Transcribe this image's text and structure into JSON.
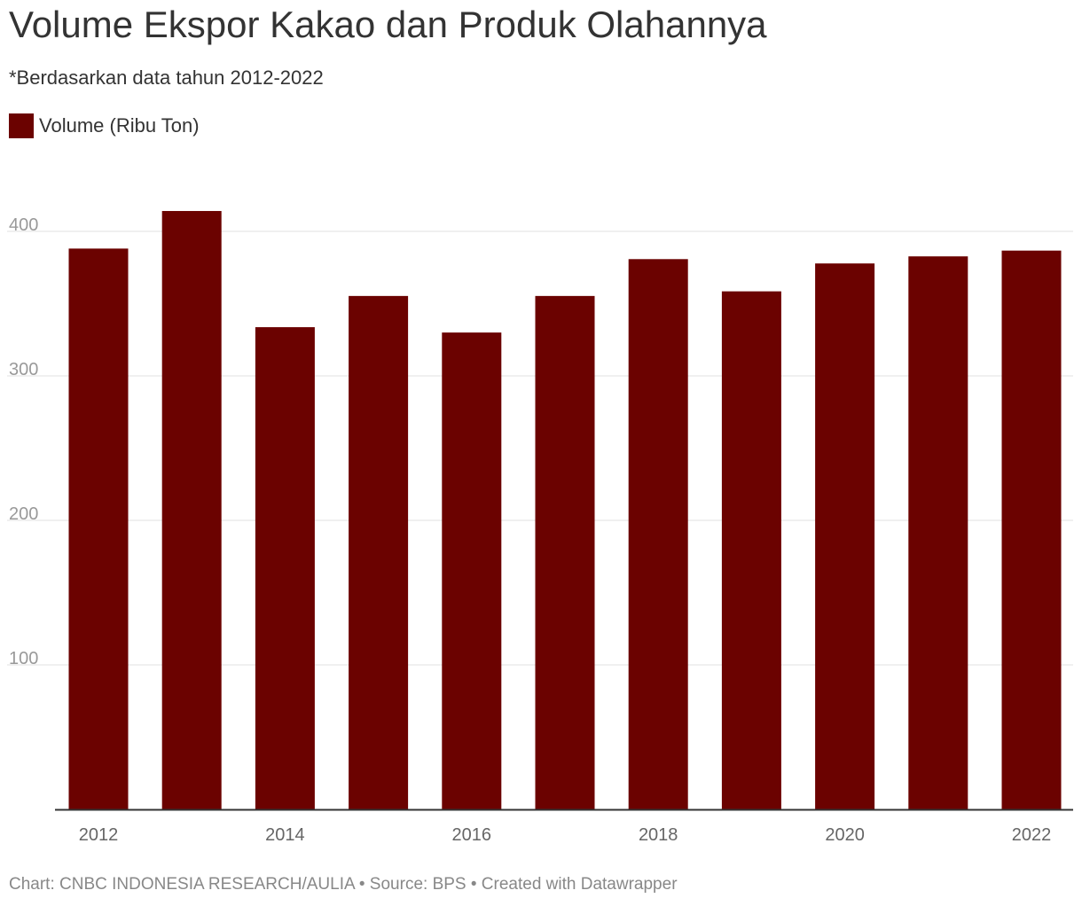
{
  "title": "Volume Ekspor Kakao dan Produk Olahannya",
  "subtitle": "*Berdasarkan data tahun 2012-2022",
  "footer": "Chart: CNBC INDONESIA RESEARCH/AULIA • Source: BPS • Created with Datawrapper",
  "colors": {
    "bar": "#6b0200",
    "grid": "#e2e2e2",
    "axis": "#333333",
    "tick_label": "#999999",
    "x_label": "#666666"
  },
  "chart_data": {
    "type": "bar",
    "categories": [
      "2012",
      "2013",
      "2014",
      "2015",
      "2016",
      "2017",
      "2018",
      "2019",
      "2020",
      "2021",
      "2022"
    ],
    "series": [
      {
        "name": "Volume (Ribu Ton)",
        "values": [
          388.1,
          414.1,
          333.7,
          355.3,
          330.0,
          355.3,
          380.8,
          358.5,
          377.8,
          382.7,
          386.7
        ]
      }
    ],
    "x_tick_labels": [
      "2012",
      "2014",
      "2016",
      "2018",
      "2020",
      "2022"
    ],
    "y_ticks": [
      100,
      200,
      300,
      400
    ],
    "ylim": [
      0,
      440
    ],
    "grid": true,
    "legend": "top-left"
  }
}
